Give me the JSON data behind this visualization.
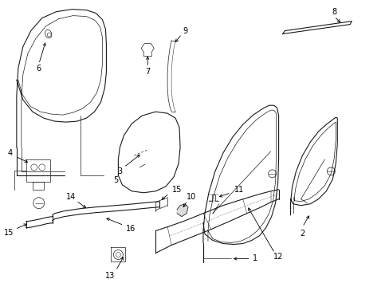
{
  "bg_color": "#ffffff",
  "line_color": "#1a1a1a",
  "label_color": "#000000",
  "lw": 0.8,
  "tlw": 0.5,
  "fig_width": 4.89,
  "fig_height": 3.6
}
